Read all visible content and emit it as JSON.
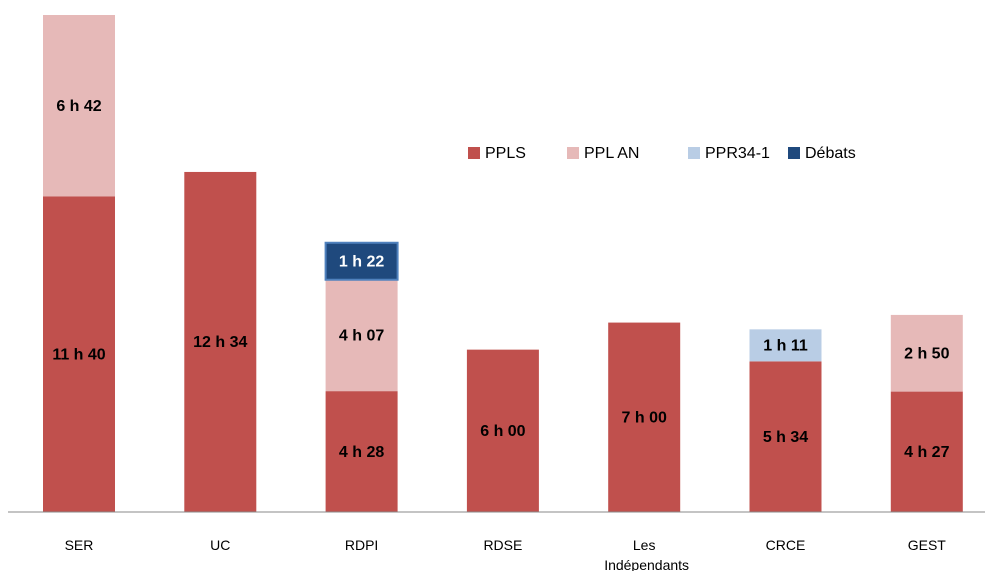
{
  "chart_data": {
    "type": "bar",
    "stacked": true,
    "categories": [
      "SER",
      "UC",
      "RDPI",
      "RDSE",
      "Les Indépendants",
      "CRCE",
      "GEST"
    ],
    "series": [
      {
        "name": "PPLS",
        "color": "#c0504d",
        "values": [
          700,
          754,
          268,
          360,
          420,
          334,
          267
        ],
        "value_labels": [
          "11 h 40",
          "12 h 34",
          "4 h 28",
          "6 h 00",
          "7 h 00",
          "5 h 34",
          "4 h 27"
        ]
      },
      {
        "name": "PPL AN",
        "color": "#e6b9b8",
        "values": [
          402,
          null,
          247,
          null,
          null,
          null,
          170
        ],
        "value_labels": [
          "6 h 42",
          null,
          "4 h 07",
          null,
          null,
          null,
          "2 h 50"
        ]
      },
      {
        "name": "PPR34-1",
        "color": "#b9cde5",
        "values": [
          null,
          null,
          null,
          null,
          null,
          71,
          null
        ],
        "value_labels": [
          null,
          null,
          null,
          null,
          null,
          "1 h 11",
          null
        ]
      },
      {
        "name": "Débats",
        "color": "#1f497d",
        "values": [
          null,
          null,
          82,
          null,
          null,
          null,
          null
        ],
        "value_labels": [
          null,
          null,
          "1 h 22",
          null,
          null,
          null,
          null
        ]
      }
    ],
    "legend": "top-right"
  }
}
